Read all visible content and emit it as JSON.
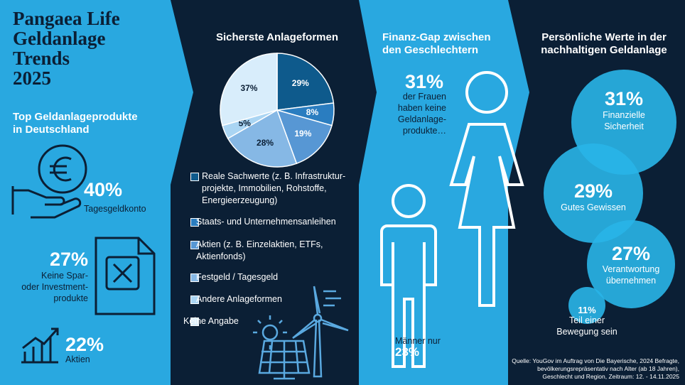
{
  "header": {
    "title": "Pangaea Life\nGeldanlage\nTrends\n2025"
  },
  "products": {
    "title": "Top Geldanlageprodukte\nin Deutschland",
    "items": [
      {
        "value": "40%",
        "label": "Tagesgeldkonto"
      },
      {
        "value": "27%",
        "label": "Keine Spar-\noder Investment-\nprodukte"
      },
      {
        "value": "22%",
        "label": "Aktien"
      }
    ]
  },
  "chart_data": {
    "type": "pie",
    "title": "Sicherste Anlageformen",
    "categories": [
      "Reale Sachwerte (z. B. Infrastruktur-\nprojekte, Immobilien, Rohstoffe,\nEnergieerzeugung)",
      "Staats- und Unternehmensanleihen",
      "Aktien (z. B. Einzelaktien, ETFs,\nAktienfonds)",
      "Festgeld / Tagesgeld",
      "Andere Anlageformen",
      "Keine Angabe"
    ],
    "values": [
      29,
      8,
      19,
      28,
      5,
      37
    ],
    "value_labels": [
      "29%",
      "8%",
      "19%",
      "28%",
      "5%",
      "37%"
    ],
    "colors": [
      "#0e5a8c",
      "#2a7dc0",
      "#5797d4",
      "#86b8e5",
      "#aad5f3",
      "#d8edfb"
    ]
  },
  "gender_gap": {
    "title": "Finanz-Gap zwischen\nden Geschlechtern",
    "women_value": "31%",
    "women_label": "der Frauen\nhaben keine\nGeldanlage-\nprodukte…",
    "men_label": "Männer nur",
    "men_value": "23%"
  },
  "values_section": {
    "title": "Persönliche Werte in der\nnachhaltigen Geldanlage",
    "items": [
      {
        "value": "31%",
        "label": "Finanzielle\nSicherheit"
      },
      {
        "value": "29%",
        "label": "Gutes Gewissen"
      },
      {
        "value": "27%",
        "label": "Verantwortung\nübernehmen"
      },
      {
        "value": "11%",
        "label": "Teil einer\nBewegung sein"
      }
    ]
  },
  "source": "Quelle: YouGov im Auftrag von Die Bayerische, 2024 Befragte,\nbevölkerungsrepräsentativ nach Alter (ab 18 Jahren),\nGeschlecht und Region, Zeitraum: 12. - 14.11.2025"
}
